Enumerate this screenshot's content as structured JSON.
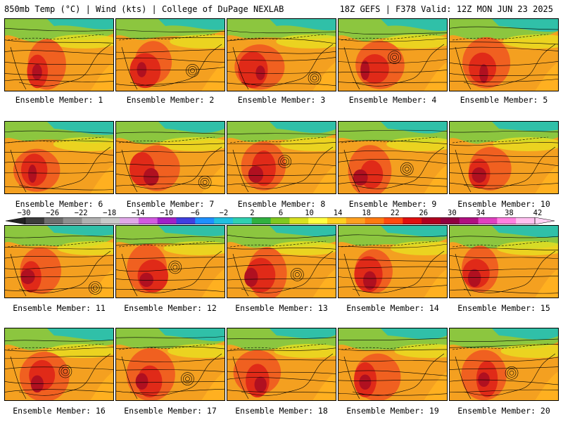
{
  "header": {
    "left_title": "850mb Temp (°C) | Wind (kts) | College of DuPage NEXLAB",
    "right_title": "18Z GEFS | F378 Valid: 12Z MON JUN 23 2025"
  },
  "member_label_prefix": "Ensemble Member: ",
  "members": [
    "1",
    "2",
    "3",
    "4",
    "5",
    "6",
    "7",
    "8",
    "9",
    "10",
    "11",
    "12",
    "13",
    "14",
    "15",
    "16",
    "17",
    "18",
    "19",
    "20"
  ],
  "colorbar": {
    "ticks": [
      "-30",
      "-26",
      "-22",
      "-18",
      "-14",
      "-10",
      "-6",
      "-2",
      "2",
      "6",
      "10",
      "14",
      "18",
      "22",
      "26",
      "30",
      "34",
      "38",
      "42"
    ],
    "colors": [
      "#3c3c3c",
      "#6e6e6e",
      "#8f8f8f",
      "#b0b0b0",
      "#c9c9c9",
      "#e0a8e8",
      "#d15ae0",
      "#a020c8",
      "#4040e0",
      "#1e90ff",
      "#20c0e0",
      "#30d0b0",
      "#30b040",
      "#80c820",
      "#d8e020",
      "#ffff40",
      "#ffd020",
      "#ffa020",
      "#ff7a10",
      "#ff4a10",
      "#e01010",
      "#b00020",
      "#900040",
      "#b01080",
      "#e040c0",
      "#ff80e0",
      "#ffc0f0"
    ]
  }
}
